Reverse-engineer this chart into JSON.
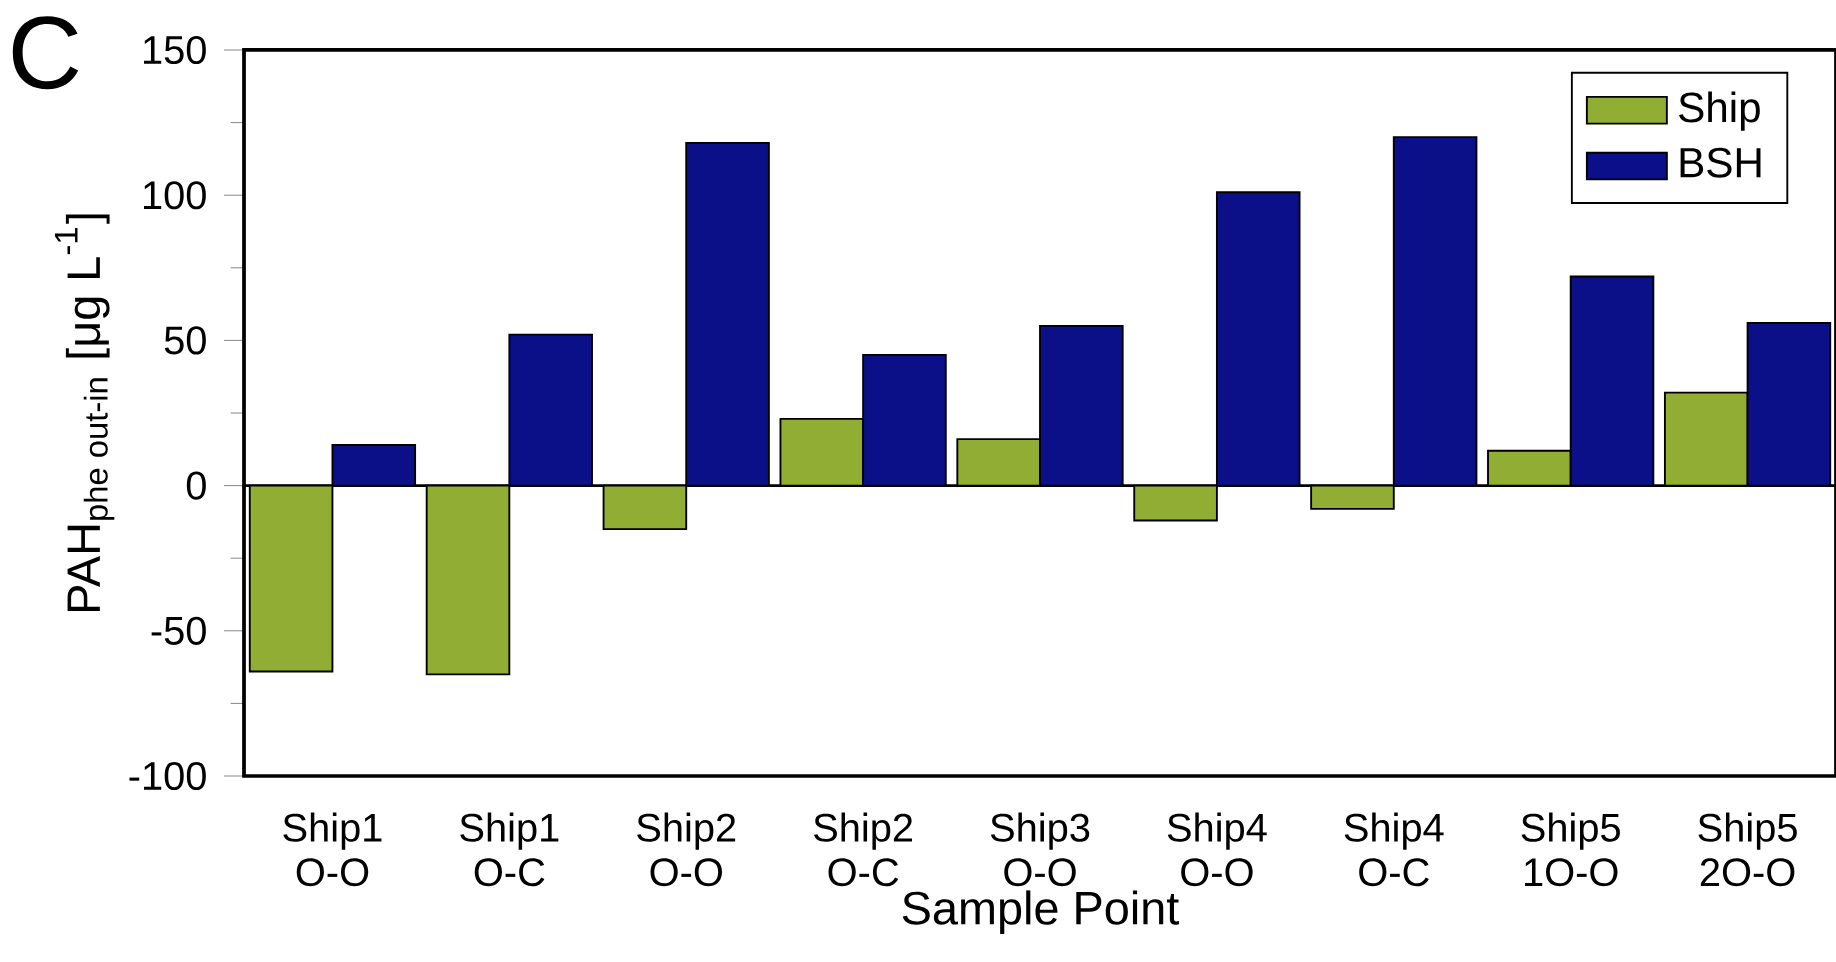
{
  "chart_data": {
    "type": "bar",
    "xlabel": "Sample Point",
    "ylabel": "\\mbox{PAH}_{\\mbox{\\scriptsize phe out-in}}\\ \\mbox{[μg L}^{\\mbox{\\scriptsize -1}}\\mbox{]}",
    "ref_lines": [
      {
        "axis": "y",
        "value": 0,
        "color": "#000000"
      }
    ],
    "annotations": [
      "C"
    ],
    "categories": [
      "Ship1 O-O",
      "Ship1 O-C",
      "Ship2 O-O",
      "Ship2 O-C",
      "Ship3 O-O",
      "Ship4 O-O",
      "Ship4 O-C",
      "Ship5 1O-O",
      "Ship5 2O-O"
    ],
    "series": [
      {
        "name": "Ship",
        "color": "#92ad33",
        "values": [
          -64,
          -65,
          -15,
          23,
          16,
          -12,
          -8,
          12,
          32
        ]
      },
      {
        "name": "BSH",
        "color": "#0b0f88",
        "values": [
          14,
          52,
          118,
          45,
          55,
          101,
          120,
          72,
          56
        ]
      }
    ],
    "ylim": [
      -100,
      150
    ],
    "yticks": [
      -100,
      -50,
      0,
      50,
      100,
      150
    ],
    "legend": "top right",
    "grid": false
  }
}
